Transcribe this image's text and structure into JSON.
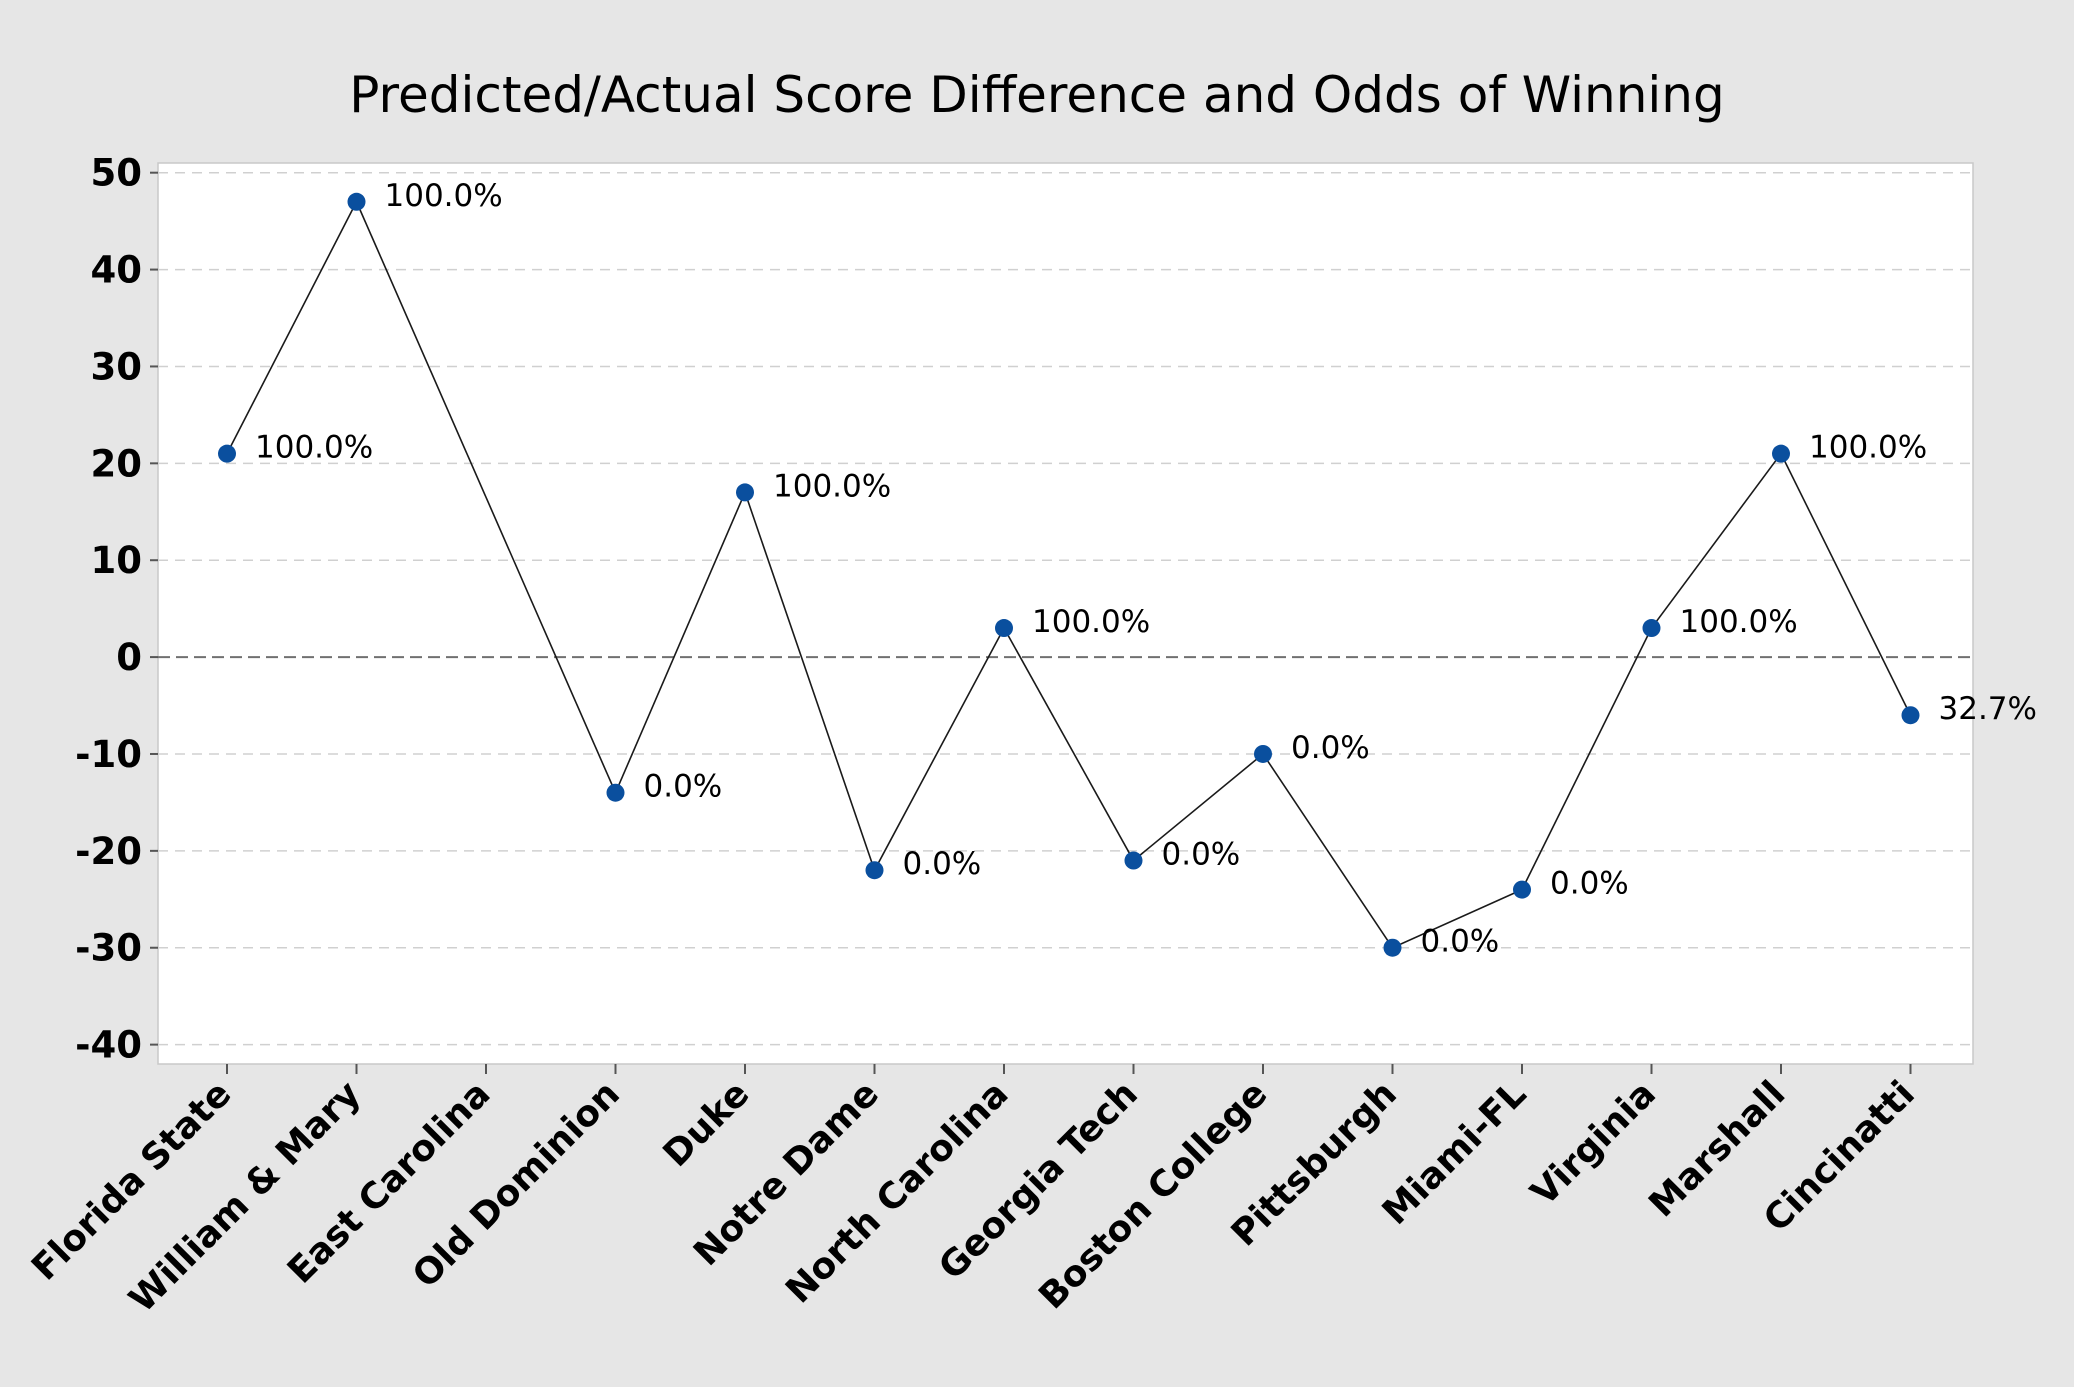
{
  "chart_data": {
    "type": "line",
    "title": "Predicted/Actual Score Difference and Odds of Winning",
    "xlabel": "",
    "ylabel": "",
    "categories": [
      "Florida State",
      "William & Mary",
      "East Carolina",
      "Old Dominion",
      "Duke",
      "Notre Dame",
      "North Carolina",
      "Georgia Tech",
      "Boston College",
      "Pittsburgh",
      "Miami-FL",
      "Virginia",
      "Marshall",
      "Cincinatti"
    ],
    "series": [
      {
        "values": [
          21,
          47,
          null,
          -14,
          17,
          -22,
          3,
          -21,
          -10,
          -30,
          -24,
          3,
          21,
          -6
        ],
        "labels": [
          "100.0%",
          "100.0%",
          "",
          "0.0%",
          "100.0%",
          "0.0%",
          "100.0%",
          "0.0%",
          "0.0%",
          "0.0%",
          "0.0%",
          "100.0%",
          "100.0%",
          "32.7%"
        ]
      }
    ],
    "ylim": [
      -42,
      51
    ],
    "yticks": [
      -40,
      -30,
      -20,
      -10,
      0,
      10,
      20,
      30,
      40,
      50
    ],
    "reference_line": 0,
    "grid": "horizontal dashed",
    "colors": {
      "marker": "#0a4f9e",
      "line": "#1a1a1a",
      "grid": "#d0d0d0",
      "reference": "#707070",
      "background": "#e6e6e6",
      "plot_background": "#ffffff"
    }
  }
}
